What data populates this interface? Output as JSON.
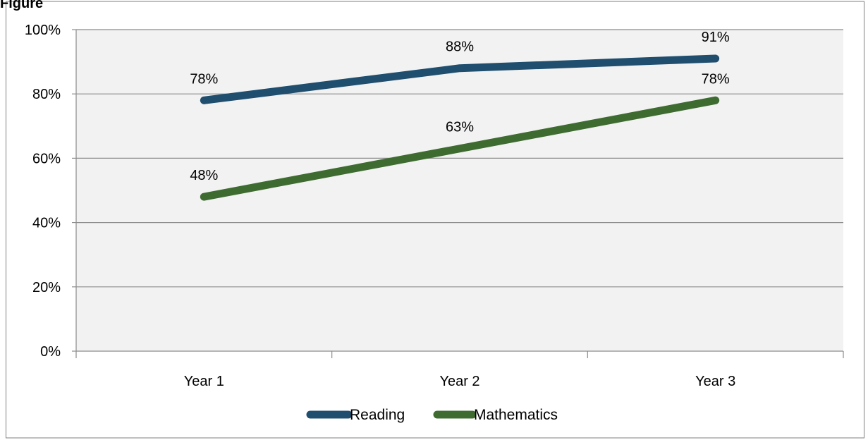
{
  "chart_data": {
    "type": "line",
    "categories": [
      "Year 1",
      "Year 2",
      "Year 3"
    ],
    "series": [
      {
        "name": "Reading",
        "values": [
          78,
          88,
          91
        ],
        "labels": [
          "78%",
          "88%",
          "91%"
        ],
        "color": "#1F4E6E"
      },
      {
        "name": "Mathematics",
        "values": [
          48,
          63,
          78
        ],
        "labels": [
          "48%",
          "63%",
          "78%"
        ],
        "color": "#3E6B30"
      }
    ],
    "yticks": [
      0,
      20,
      40,
      60,
      80,
      100
    ],
    "ytick_labels": [
      "0%",
      "20%",
      "40%",
      "60%",
      "80%",
      "100%"
    ],
    "ylim": [
      0,
      100
    ],
    "grid": true,
    "legend_position": "bottom",
    "plot_background": "#F2F2F2",
    "gridline_color": "#8C8C8C"
  }
}
